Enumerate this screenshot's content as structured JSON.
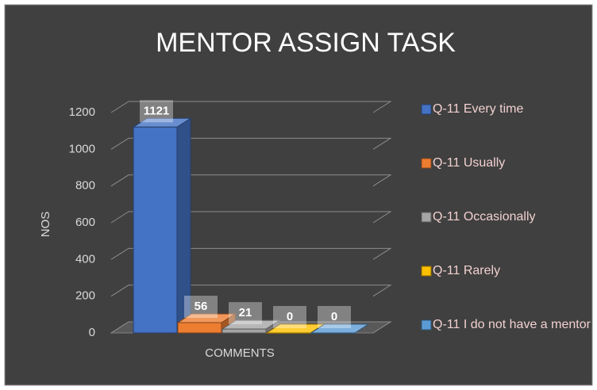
{
  "chart_data": {
    "type": "bar",
    "title": "MENTOR ASSIGN TASK",
    "y_label": "NOS",
    "x_label": "COMMENTS",
    "categories": [
      "COMMENTS"
    ],
    "series": [
      {
        "name": "Q-11 Every time",
        "color": "#4472c4",
        "values": [
          1121
        ]
      },
      {
        "name": "Q-11 Usually",
        "color": "#ed7d31",
        "values": [
          56
        ]
      },
      {
        "name": "Q-11 Occasionally",
        "color": "#a5a5a5",
        "values": [
          21
        ]
      },
      {
        "name": "Q-11 Rarely",
        "color": "#ffc000",
        "values": [
          0
        ]
      },
      {
        "name": "Q-11 I do not have a mentor",
        "color": "#5b9bd5",
        "values": [
          0
        ]
      }
    ],
    "ylim": [
      0,
      1200
    ],
    "yticks": [
      0,
      200,
      400,
      600,
      800,
      1000,
      1200
    ],
    "grid": true,
    "legend": "right"
  }
}
